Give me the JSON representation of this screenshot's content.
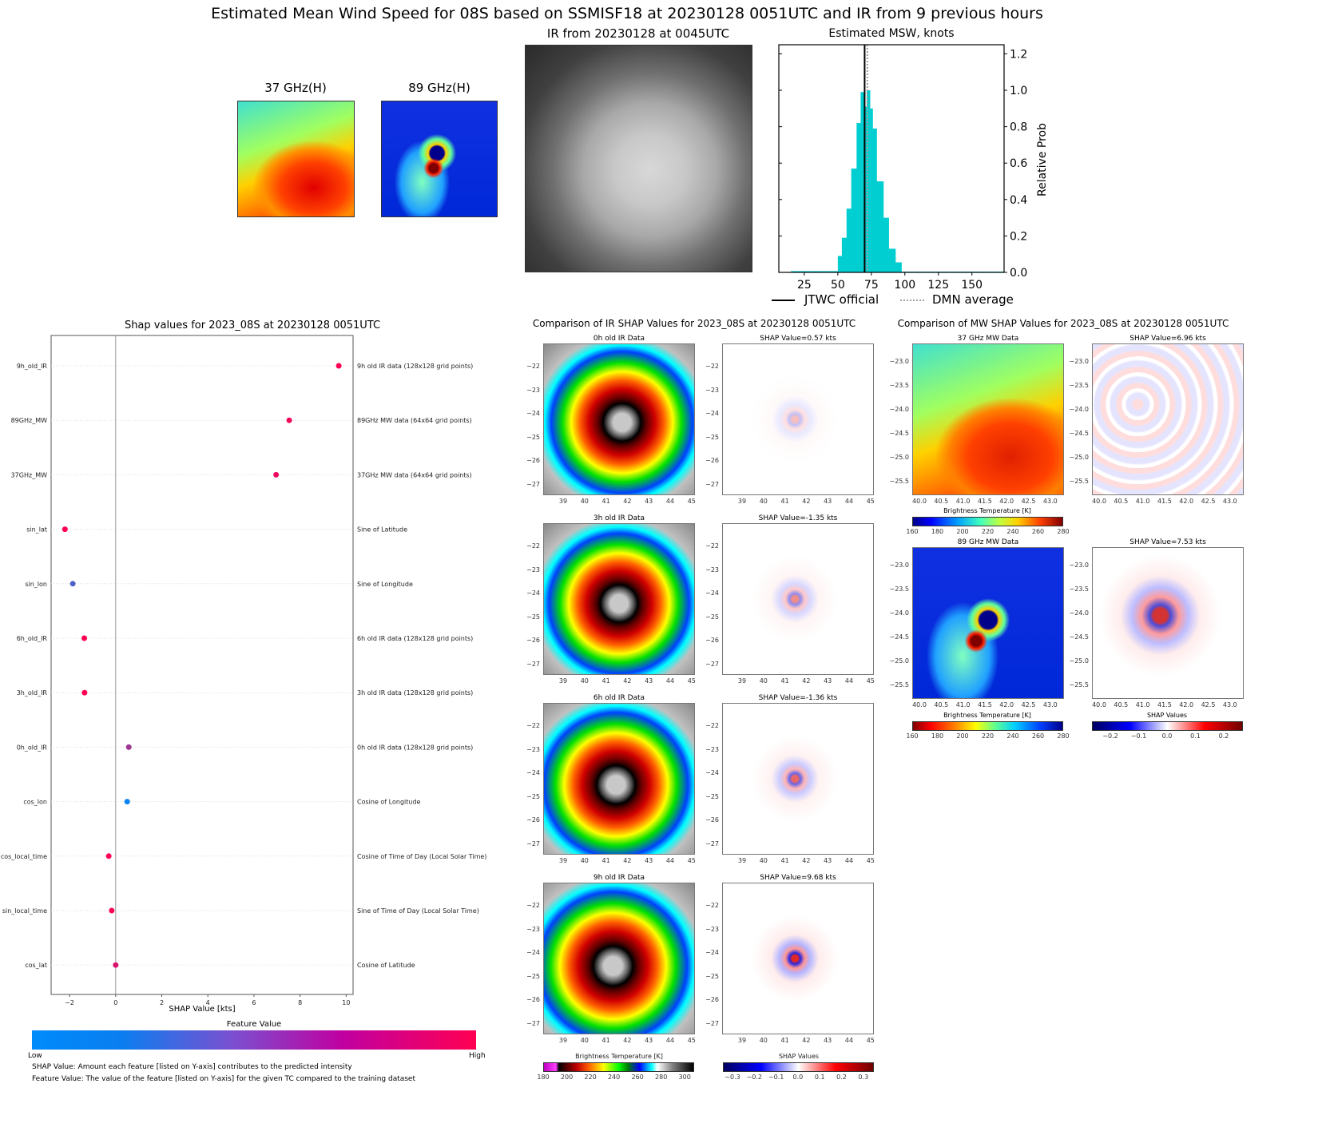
{
  "title": "Estimated Mean Wind Speed for 08S based on SSMISF18 at 20230128 0051UTC and IR from 9 previous hours",
  "top_panels": {
    "mw37_title": "37 GHz(H)",
    "mw89_title": "89 GHz(H)",
    "ir_title": "IR from 20230128 at 0045UTC"
  },
  "chart_data": [
    {
      "type": "bar",
      "title": "Estimated MSW, knots",
      "xlabel": "",
      "ylabel": "Relative Prob",
      "xlim": [
        6,
        174
      ],
      "ylim": [
        0,
        1.25
      ],
      "x_ticks": [
        25,
        50,
        75,
        100,
        125,
        150
      ],
      "y_ticks": [
        0.0,
        0.2,
        0.4,
        0.6,
        0.8,
        1.0,
        1.2
      ],
      "bin_edges": [
        15,
        50,
        53,
        56.5,
        60,
        64,
        67,
        69.5,
        71.5,
        74,
        76,
        79,
        84,
        88,
        93,
        97.5,
        174
      ],
      "values": [
        0.007,
        0.09,
        0.19,
        0.35,
        0.57,
        0.82,
        0.99,
        0.91,
        1.0,
        0.9,
        0.79,
        0.5,
        0.3,
        0.13,
        0.055,
        0.004
      ],
      "bar_color": "#00ced1",
      "vlines": [
        {
          "name": "JTWC official",
          "x": 70,
          "style": "solid",
          "color": "#000000"
        },
        {
          "name": "DMN average",
          "x": 72,
          "style": "dotted",
          "color": "#a0a0a0"
        }
      ],
      "legend_placement": "bottom"
    },
    {
      "type": "scatter",
      "title": "Shap values for 2023_08S at 20230128 0051UTC",
      "xlabel": "SHAP Value [kts]",
      "xlim": [
        -2.8,
        10.3
      ],
      "x_ticks": [
        -2,
        0,
        2,
        4,
        6,
        8,
        10
      ],
      "features": [
        "9h_old_IR",
        "89GHz_MW",
        "37GHz_MW",
        "sin_lat",
        "sin_lon",
        "6h_old_IR",
        "3h_old_IR",
        "0h_old_IR",
        "cos_lon",
        "cos_local_time",
        "sin_local_time",
        "cos_lat"
      ],
      "descriptions": [
        "9h old IR data (128x128 grid points)",
        "89GHz MW data (64x64 grid points)",
        "37GHz MW data (64x64 grid points)",
        "Sine of Latitude",
        "Sine of Longitude",
        "6h old IR data (128x128 grid points)",
        "3h old IR data (128x128 grid points)",
        "0h old IR data (128x128 grid points)",
        "Cosine of Longitude",
        "Cosine of Time of Day (Local Solar Time)",
        "Sine of Time of Day (Local Solar Time)",
        "Cosine of Latitude"
      ],
      "values": [
        9.68,
        7.53,
        6.96,
        -2.2,
        -1.86,
        -1.36,
        -1.35,
        0.57,
        0.5,
        -0.3,
        -0.17,
        0.0
      ],
      "feature_values": [
        1.0,
        0.95,
        0.92,
        1.0,
        0.3,
        1.0,
        1.0,
        0.62,
        0.05,
        1.0,
        0.97,
        0.85
      ],
      "colorbar": {
        "title": "Feature Value",
        "low": "Low",
        "high": "High",
        "low_color": "#008bfb",
        "high_color": "#ff0052"
      }
    }
  ],
  "notes": [
    "SHAP Value: Amount each feature [listed on Y-axis] contributes to the predicted intensity",
    "Feature Value: The value of the feature [listed on Y-axis] for the given TC compared to the training dataset"
  ],
  "ir_comparison": {
    "title": "Comparison of IR SHAP Values for 2023_08S at 20230128 0051UTC",
    "rows": [
      {
        "data_title": "0h old IR Data",
        "shap_title": "SHAP Value=0.57 kts",
        "intensity": 0.25
      },
      {
        "data_title": "3h old IR Data",
        "shap_title": "SHAP Value=-1.35 kts",
        "intensity": 0.45
      },
      {
        "data_title": "6h old IR Data",
        "shap_title": "SHAP Value=-1.36 kts",
        "intensity": 0.6
      },
      {
        "data_title": "9h old IR Data",
        "shap_title": "SHAP Value=9.68 kts",
        "intensity": 0.85
      }
    ],
    "y_ticks": [
      "−22",
      "−23",
      "−24",
      "−25",
      "−26",
      "−27"
    ],
    "x_ticks": [
      "39",
      "40",
      "41",
      "42",
      "43",
      "44",
      "45"
    ],
    "bt_colorbar": {
      "title": "Brightness Temperature [K]",
      "ticks": [
        "180",
        "200",
        "220",
        "240",
        "260",
        "280",
        "300"
      ]
    },
    "shap_colorbar": {
      "title": "SHAP Values",
      "ticks": [
        "−0.3",
        "−0.2",
        "−0.1",
        "0.0",
        "0.1",
        "0.2",
        "0.3"
      ]
    }
  },
  "mw_comparison": {
    "title": "Comparison of MW SHAP Values for 2023_08S at 20230128 0051UTC",
    "rows": [
      {
        "data_title": "37 GHz MW Data",
        "shap_title": "SHAP Value=6.96 kts"
      },
      {
        "data_title": "89 GHz MW Data",
        "shap_title": "SHAP Value=7.53 kts"
      }
    ],
    "y_ticks": [
      "−23.0",
      "−23.5",
      "−24.0",
      "−24.5",
      "−25.0",
      "−25.5"
    ],
    "x_ticks": [
      "40.0",
      "40.5",
      "41.0",
      "41.5",
      "42.0",
      "42.5",
      "43.0"
    ],
    "bt37_colorbar": {
      "title": "Brightness Temperature [K]",
      "ticks": [
        "160",
        "180",
        "200",
        "220",
        "240",
        "260",
        "280"
      ]
    },
    "bt89_colorbar": {
      "title": "Brightness Temperature [K]",
      "ticks": [
        "160",
        "180",
        "200",
        "220",
        "240",
        "260",
        "280"
      ]
    },
    "shap_colorbar": {
      "title": "SHAP Values",
      "ticks": [
        "−0.2",
        "−0.1",
        "0.0",
        "0.1",
        "0.2"
      ]
    }
  }
}
